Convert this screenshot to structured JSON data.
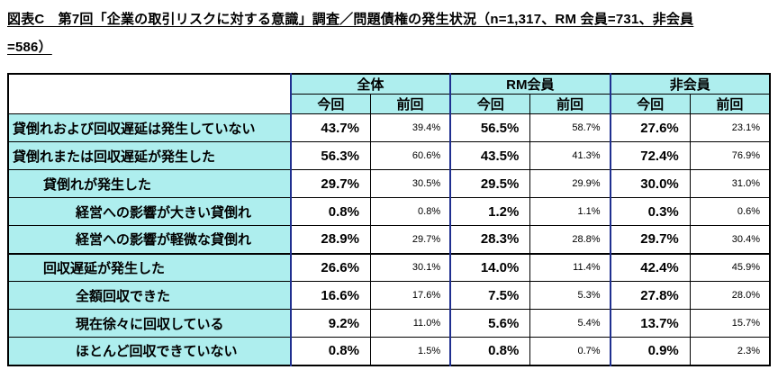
{
  "title": {
    "line1": "図表C　第7回「企業の取引リスクに対する意識」調査／問題債権の発生状況（n=1,317、RM 会員=731、非会員",
    "line2": "=586）"
  },
  "table": {
    "col_groups": [
      "全体",
      "RM会員",
      "非会員"
    ],
    "sub_headers": [
      "今回",
      "前回"
    ],
    "rows": [
      {
        "label": "貸倒れおよび回収遅延は発生していない",
        "values": [
          "43.7%",
          "39.4%",
          "56.5%",
          "58.7%",
          "27.6%",
          "23.1%"
        ]
      },
      {
        "label": "貸倒れまたは回収遅延が発生した",
        "values": [
          "56.3%",
          "60.6%",
          "43.5%",
          "41.3%",
          "72.4%",
          "76.9%"
        ]
      },
      {
        "label": "貸倒れが発生した",
        "values": [
          "29.7%",
          "30.5%",
          "29.5%",
          "29.9%",
          "30.0%",
          "31.0%"
        ]
      },
      {
        "label": "経営への影響が大きい貸倒れ",
        "values": [
          "0.8%",
          "0.8%",
          "1.2%",
          "1.1%",
          "0.3%",
          "0.6%"
        ]
      },
      {
        "label": "経営への影響が軽微な貸倒れ",
        "values": [
          "28.9%",
          "29.7%",
          "28.3%",
          "28.8%",
          "29.7%",
          "30.4%"
        ]
      },
      {
        "label": "回収遅延が発生した",
        "values": [
          "26.6%",
          "30.1%",
          "14.0%",
          "11.4%",
          "42.4%",
          "45.9%"
        ]
      },
      {
        "label": "全額回収できた",
        "values": [
          "16.6%",
          "17.6%",
          "7.5%",
          "5.3%",
          "27.8%",
          "28.0%"
        ]
      },
      {
        "label": "現在徐々に回収している",
        "values": [
          "9.2%",
          "11.0%",
          "5.6%",
          "5.4%",
          "13.7%",
          "15.7%"
        ]
      },
      {
        "label": "ほとんど回収できていない",
        "values": [
          "0.8%",
          "1.5%",
          "0.8%",
          "0.7%",
          "0.9%",
          "2.3%"
        ]
      }
    ]
  },
  "colors": {
    "header_bg": "#aeeeee",
    "group_border": "#1f2f8f",
    "border": "#000000"
  }
}
